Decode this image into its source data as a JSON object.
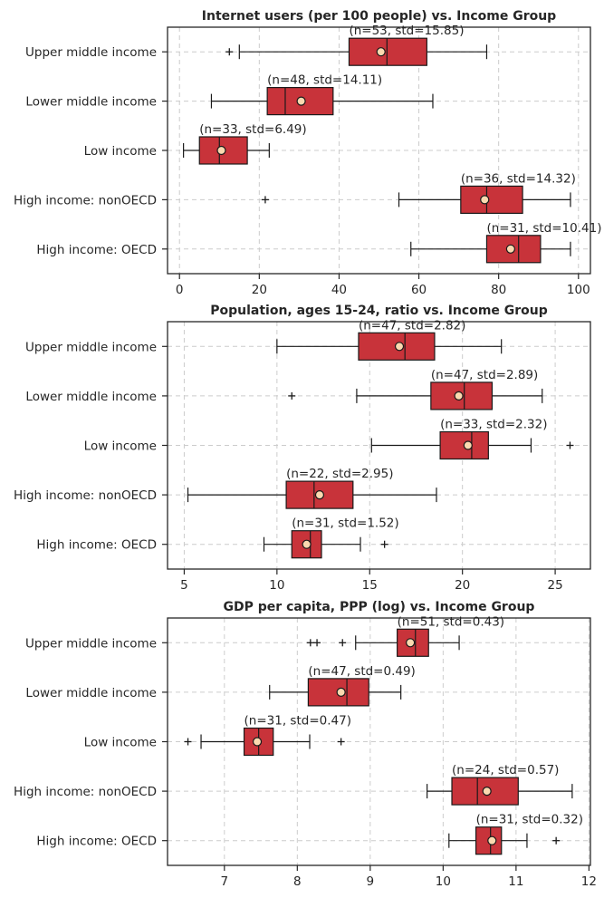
{
  "chart_data": [
    {
      "type": "box",
      "title": "Internet users (per 100 people) vs. Income Group",
      "xlabel": "",
      "ylabel": "",
      "xlim": [
        -3,
        103
      ],
      "xticks": [
        0,
        20,
        40,
        60,
        80,
        100
      ],
      "grid": true,
      "groups": [
        {
          "category": "Upper middle income",
          "whislo": 15,
          "q1": 42.5,
          "median": 52,
          "q3": 62,
          "whishi": 77,
          "mean": 50.5,
          "fliers": [
            12.5
          ],
          "label": "(n=53, std=15.85)"
        },
        {
          "category": "Lower middle income",
          "whislo": 8,
          "q1": 22,
          "median": 26.5,
          "q3": 38.5,
          "whishi": 63.5,
          "mean": 30.5,
          "fliers": [],
          "label": "(n=48, std=14.11)"
        },
        {
          "category": "Low income",
          "whislo": 1,
          "q1": 5,
          "median": 10,
          "q3": 17,
          "whishi": 22.5,
          "mean": 10.5,
          "fliers": [],
          "label": "(n=33, std=6.49)"
        },
        {
          "category": "High income: nonOECD",
          "whislo": 55,
          "q1": 70.5,
          "median": 77,
          "q3": 86,
          "whishi": 98,
          "mean": 76.5,
          "fliers": [
            21.5
          ],
          "label": "(n=36, std=14.32)"
        },
        {
          "category": "High income: OECD",
          "whislo": 58,
          "q1": 77,
          "median": 85,
          "q3": 90.5,
          "whishi": 98,
          "mean": 83,
          "fliers": [],
          "label": "(n=31, std=10.41)"
        }
      ]
    },
    {
      "type": "box",
      "title": "Population, ages 15-24, ratio vs. Income Group",
      "xlabel": "",
      "ylabel": "",
      "xlim": [
        4.1,
        26.9
      ],
      "xticks": [
        5,
        10,
        15,
        20,
        25
      ],
      "grid": true,
      "groups": [
        {
          "category": "Upper middle income",
          "whislo": 10,
          "q1": 14.4,
          "median": 16.9,
          "q3": 18.5,
          "whishi": 22.1,
          "mean": 16.6,
          "fliers": [],
          "label": "(n=47, std=2.82)"
        },
        {
          "category": "Lower middle income",
          "whislo": 14.3,
          "q1": 18.3,
          "median": 20.1,
          "q3": 21.6,
          "whishi": 24.3,
          "mean": 19.8,
          "fliers": [
            10.8
          ],
          "label": "(n=47, std=2.89)"
        },
        {
          "category": "Low income",
          "whislo": 15.1,
          "q1": 18.8,
          "median": 20.5,
          "q3": 21.4,
          "whishi": 23.7,
          "mean": 20.3,
          "fliers": [
            25.8
          ],
          "label": "(n=33, std=2.32)"
        },
        {
          "category": "High income: nonOECD",
          "whislo": 5.2,
          "q1": 10.5,
          "median": 12,
          "q3": 14.1,
          "whishi": 18.6,
          "mean": 12.3,
          "fliers": [],
          "label": "(n=22, std=2.95)"
        },
        {
          "category": "High income: OECD",
          "whislo": 9.3,
          "q1": 10.8,
          "median": 11.8,
          "q3": 12.4,
          "whishi": 14.5,
          "mean": 11.6,
          "fliers": [
            15.8
          ],
          "label": "(n=31, std=1.52)"
        }
      ]
    },
    {
      "type": "box",
      "title": "GDP per capita, PPP (log) vs. Income Group",
      "xlabel": "",
      "ylabel": "",
      "xlim": [
        6.22,
        12.02
      ],
      "xticks": [
        7,
        8,
        9,
        10,
        11,
        12
      ],
      "grid": true,
      "groups": [
        {
          "category": "Upper middle income",
          "whislo": 8.8,
          "q1": 9.37,
          "median": 9.62,
          "q3": 9.8,
          "whishi": 10.22,
          "mean": 9.55,
          "fliers": [
            8.18,
            8.27,
            8.62
          ],
          "label": "(n=51, std=0.43)"
        },
        {
          "category": "Lower middle income",
          "whislo": 7.62,
          "q1": 8.15,
          "median": 8.68,
          "q3": 8.98,
          "whishi": 9.42,
          "mean": 8.6,
          "fliers": [],
          "label": "(n=47, std=0.49)"
        },
        {
          "category": "Low income",
          "whislo": 6.68,
          "q1": 7.27,
          "median": 7.47,
          "q3": 7.67,
          "whishi": 8.17,
          "mean": 7.45,
          "fliers": [
            6.5,
            8.6
          ],
          "label": "(n=31, std=0.47)"
        },
        {
          "category": "High income: nonOECD",
          "whislo": 9.78,
          "q1": 10.12,
          "median": 10.47,
          "q3": 11.03,
          "whishi": 11.77,
          "mean": 10.6,
          "fliers": [],
          "label": "(n=24, std=0.57)"
        },
        {
          "category": "High income: OECD",
          "whislo": 10.08,
          "q1": 10.45,
          "median": 10.65,
          "q3": 10.8,
          "whishi": 11.15,
          "mean": 10.67,
          "fliers": [
            11.55
          ],
          "label": "(n=31, std=0.32)"
        }
      ]
    }
  ]
}
